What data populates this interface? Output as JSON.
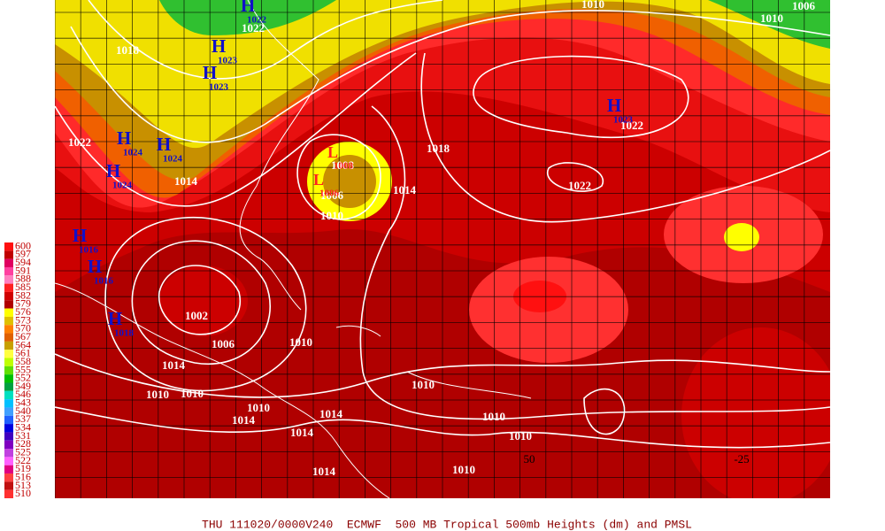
{
  "caption": "THU 111020/0000V240  ECMWF  500 MB Tropical 500mb Heights (dm) and PMSL",
  "legend": [
    {
      "label": "600",
      "color": "#ff1010"
    },
    {
      "label": "597",
      "color": "#c00000"
    },
    {
      "label": "594",
      "color": "#e00060"
    },
    {
      "label": "591",
      "color": "#ff40a0"
    },
    {
      "label": "588",
      "color": "#ff80c0"
    },
    {
      "label": "585",
      "color": "#ff2020"
    },
    {
      "label": "582",
      "color": "#d00000"
    },
    {
      "label": "579",
      "color": "#b00000"
    },
    {
      "label": "576",
      "color": "#ffff00"
    },
    {
      "label": "573",
      "color": "#e0c000"
    },
    {
      "label": "570",
      "color": "#ff8000"
    },
    {
      "label": "567",
      "color": "#e06000"
    },
    {
      "label": "564",
      "color": "#c8a000"
    },
    {
      "label": "561",
      "color": "#ffff40"
    },
    {
      "label": "558",
      "color": "#c0ff00"
    },
    {
      "label": "555",
      "color": "#60e000"
    },
    {
      "label": "552",
      "color": "#00c000"
    },
    {
      "label": "549",
      "color": "#00a040"
    },
    {
      "label": "546",
      "color": "#00e0c0"
    },
    {
      "label": "543",
      "color": "#00c0ff"
    },
    {
      "label": "540",
      "color": "#40a0ff"
    },
    {
      "label": "537",
      "color": "#2060ff"
    },
    {
      "label": "534",
      "color": "#0000e0"
    },
    {
      "label": "531",
      "color": "#4000c0"
    },
    {
      "label": "528",
      "color": "#8000c0"
    },
    {
      "label": "525",
      "color": "#c040e0"
    },
    {
      "label": "522",
      "color": "#ff60ff"
    },
    {
      "label": "519",
      "color": "#e00080"
    },
    {
      "label": "516",
      "color": "#ff4040"
    },
    {
      "label": "513",
      "color": "#c01010"
    },
    {
      "label": "510",
      "color": "#ff3030"
    }
  ],
  "isobar_labels": [
    "1010",
    "1006",
    "1010",
    "1022",
    "1018",
    "1022",
    "1018",
    "1014",
    "1022",
    "1022",
    "1010",
    "1006",
    "1008",
    "1002",
    "1006",
    "1010",
    "1010",
    "1010",
    "1010",
    "1010",
    "1010",
    "1010",
    "1014",
    "1014",
    "1014",
    "1014",
    "1010",
    "1014",
    "1014"
  ],
  "highs": [
    {
      "mark": "H",
      "value": "1022"
    },
    {
      "mark": "H",
      "value": "1023"
    },
    {
      "mark": "H",
      "value": "1023"
    },
    {
      "mark": "H",
      "value": "1024"
    },
    {
      "mark": "H",
      "value": "1024"
    },
    {
      "mark": "H",
      "value": "1024"
    },
    {
      "mark": "H",
      "value": "1016"
    },
    {
      "mark": "H",
      "value": "1016"
    },
    {
      "mark": "H",
      "value": "1018"
    },
    {
      "mark": "H",
      "value": "1023"
    }
  ],
  "lows": [
    {
      "mark": "L",
      "value": "1008"
    },
    {
      "mark": "L",
      "value": "1006"
    }
  ],
  "longitudes": [
    "50",
    "-25"
  ]
}
